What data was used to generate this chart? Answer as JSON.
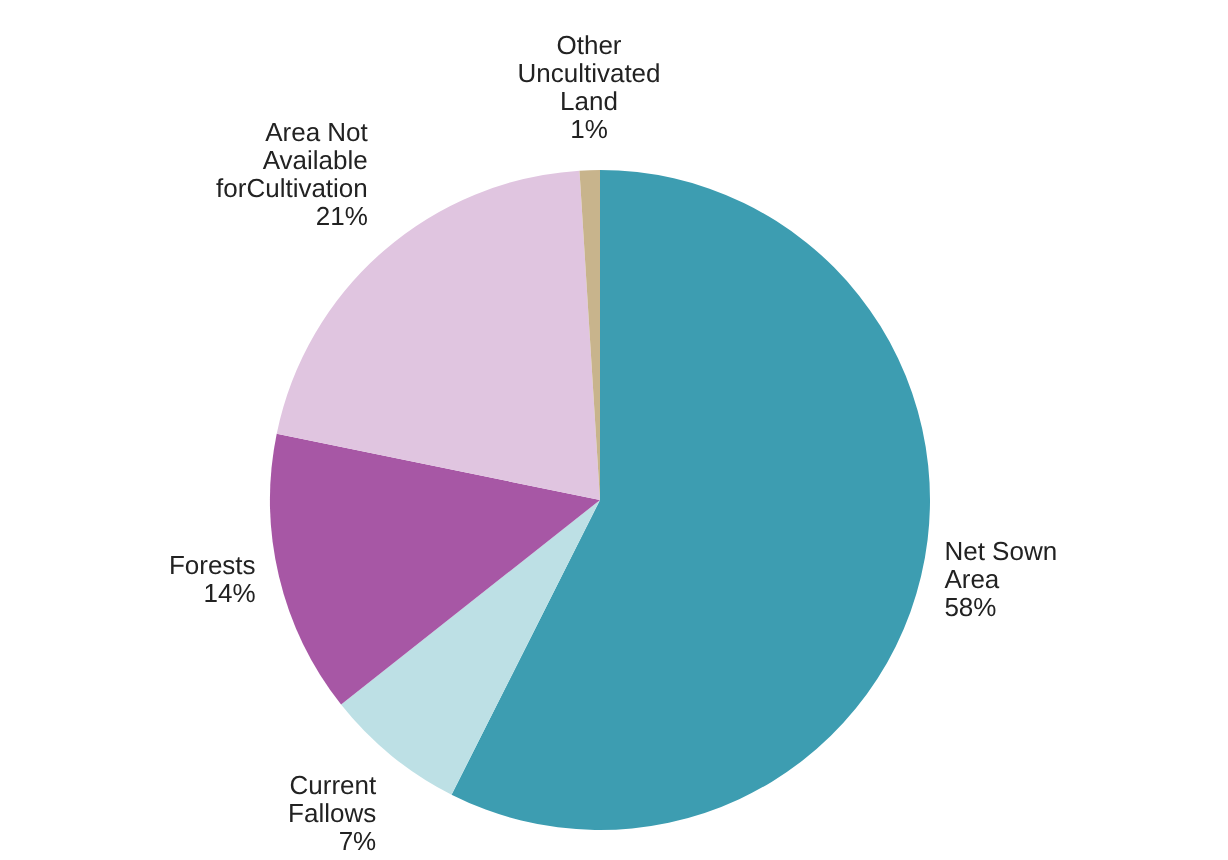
{
  "chart_data": {
    "type": "pie",
    "categories": [
      "Net Sown Area",
      "Current Fallows",
      "Forests",
      "Area Not Available forCultivation",
      "Other Uncultivated Land"
    ],
    "values": [
      58,
      7,
      14,
      21,
      1
    ],
    "value_labels": [
      "58%",
      "7%",
      "14%",
      "21%",
      "1%"
    ],
    "colors": [
      "#3d9db1",
      "#bde0e5",
      "#a757a5",
      "#e0c5e0",
      "#c8b48c"
    ],
    "legend": false
  }
}
